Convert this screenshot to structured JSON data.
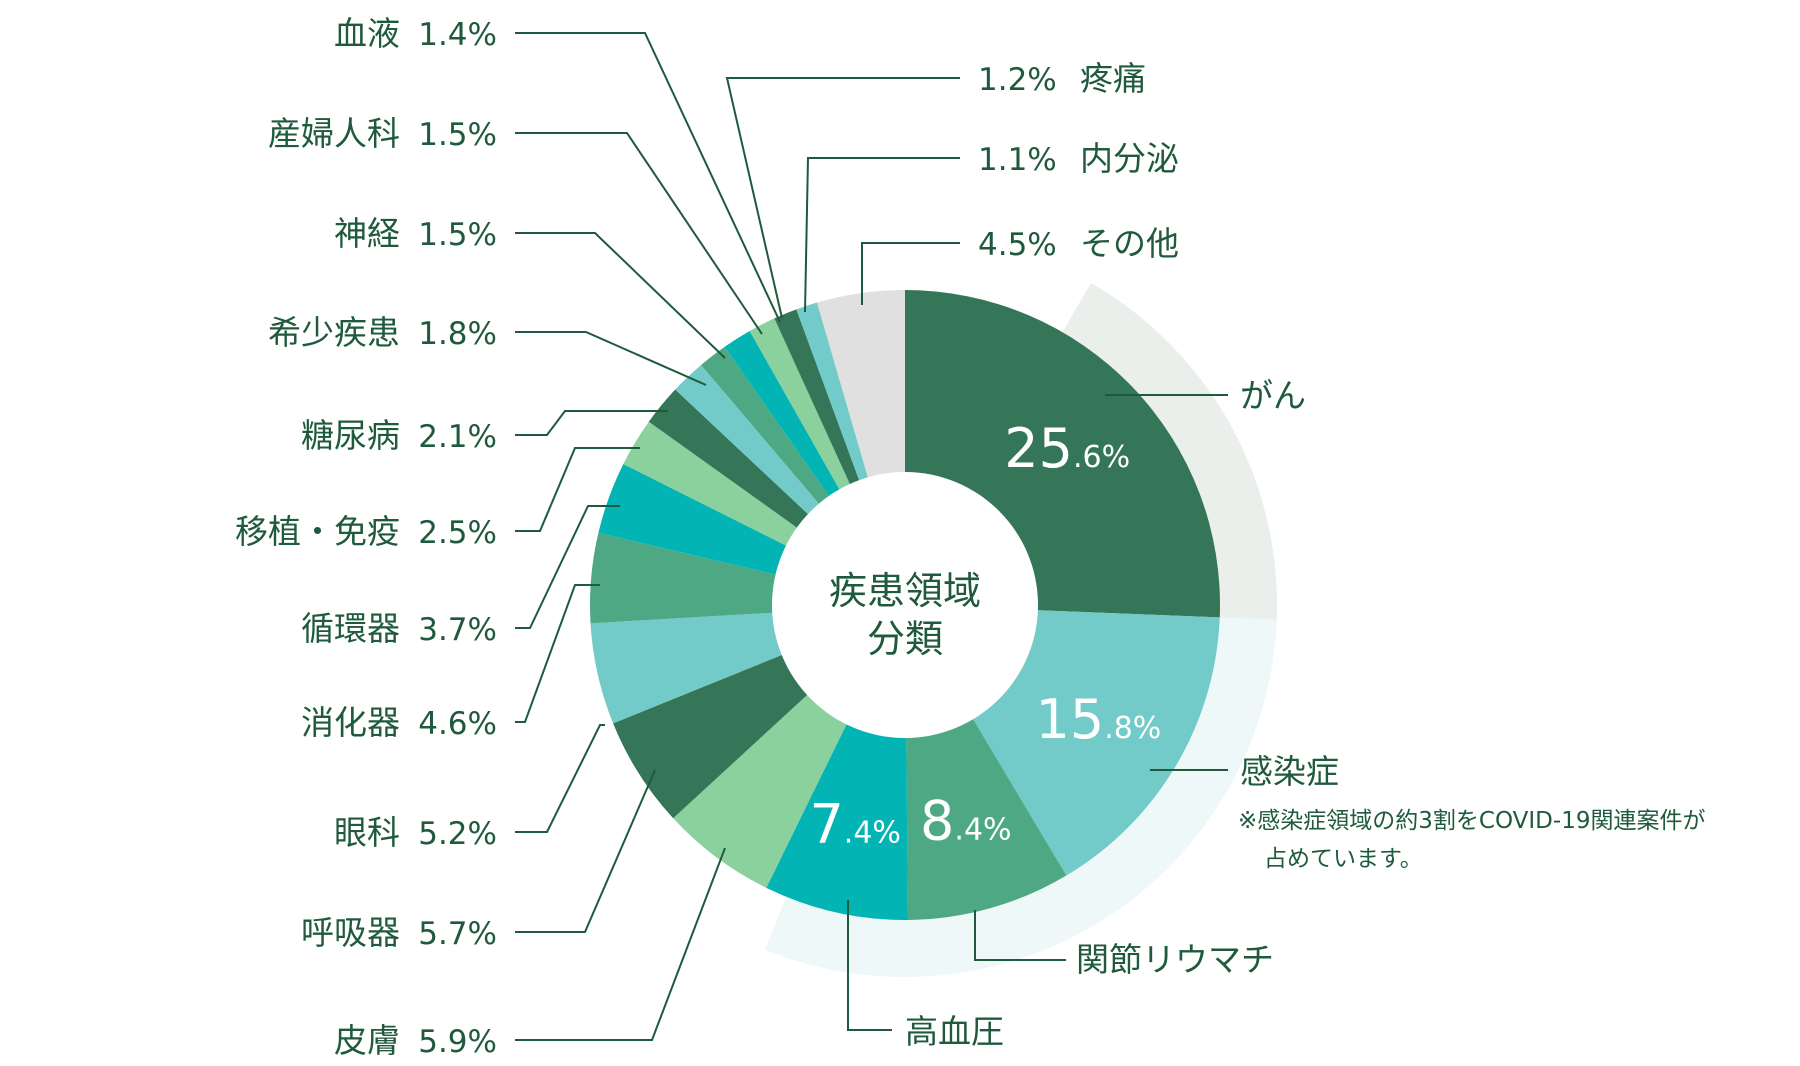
{
  "chart_data": {
    "type": "pie",
    "title": "",
    "center_label": [
      "疾患領域",
      "分類"
    ],
    "unit": "%",
    "slices": [
      {
        "label": "がん",
        "value": 25.6,
        "color": "#347657",
        "inner_label": {
          "int": "25",
          "dec": ".6%"
        }
      },
      {
        "label": "感染症",
        "value": 15.8,
        "color": "#72cbc9",
        "inner_label": {
          "int": "15",
          "dec": ".8%"
        }
      },
      {
        "label": "関節リウマチ",
        "value": 8.4,
        "color": "#4ea884",
        "inner_label": {
          "int": "8",
          "dec": ".4%"
        }
      },
      {
        "label": "高血圧",
        "value": 7.4,
        "color": "#02b5b4",
        "inner_label": {
          "int": "7",
          "dec": ".4%"
        }
      },
      {
        "label": "皮膚",
        "value": 5.9,
        "color": "#8bd19d"
      },
      {
        "label": "呼吸器",
        "value": 5.7,
        "color": "#347657"
      },
      {
        "label": "眼科",
        "value": 5.2,
        "color": "#72cbc9"
      },
      {
        "label": "消化器",
        "value": 4.6,
        "color": "#4ea884"
      },
      {
        "label": "循環器",
        "value": 3.7,
        "color": "#02b5b4"
      },
      {
        "label": "移植・免疫",
        "value": 2.5,
        "color": "#8bd19d"
      },
      {
        "label": "糖尿病",
        "value": 2.1,
        "color": "#347657"
      },
      {
        "label": "希少疾患",
        "value": 1.8,
        "color": "#72cbc9"
      },
      {
        "label": "神経",
        "value": 1.5,
        "color": "#4ea884"
      },
      {
        "label": "産婦人科",
        "value": 1.5,
        "color": "#02b5b4"
      },
      {
        "label": "血液",
        "value": 1.4,
        "color": "#8bd19d"
      },
      {
        "label": "疼痛",
        "value": 1.2,
        "color": "#347657"
      },
      {
        "label": "内分泌",
        "value": 1.1,
        "color": "#72cbc9"
      },
      {
        "label": "その他",
        "value": 4.5,
        "color": "#e0e0e0"
      }
    ],
    "left_labels": [
      {
        "name": "血液",
        "pct": "1.4%"
      },
      {
        "name": "産婦人科",
        "pct": "1.5%"
      },
      {
        "name": "神経",
        "pct": "1.5%"
      },
      {
        "name": "希少疾患",
        "pct": "1.8%"
      },
      {
        "name": "糖尿病",
        "pct": "2.1%"
      },
      {
        "name": "移植・免疫",
        "pct": "2.5%"
      },
      {
        "name": "循環器",
        "pct": "3.7%"
      },
      {
        "name": "消化器",
        "pct": "4.6%"
      },
      {
        "name": "眼科",
        "pct": "5.2%"
      },
      {
        "name": "呼吸器",
        "pct": "5.7%"
      },
      {
        "name": "皮膚",
        "pct": "5.9%"
      }
    ],
    "right_labels": [
      {
        "name": "疼痛",
        "pct": "1.2%"
      },
      {
        "name": "内分泌",
        "pct": "1.1%"
      },
      {
        "name": "その他",
        "pct": "4.5%"
      }
    ],
    "outer_labels": {
      "cancer": "がん",
      "infection": "感染症",
      "ra": "関節リウマチ",
      "hypertension": "高血圧"
    },
    "note": [
      "※感染症領域の約3割をCOVID-19関連案件が",
      "占めています。"
    ],
    "highlight_colors": {
      "cancer_shadow": "#eaefec",
      "infection_shadow": "#eef8f8"
    }
  }
}
